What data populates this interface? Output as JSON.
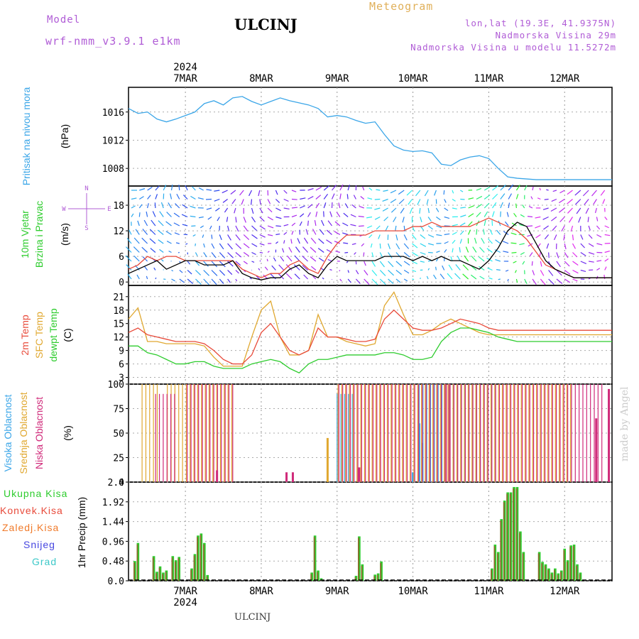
{
  "header": {
    "model_label": "Model",
    "model_name": "wrf-nmm_v3.9.1 e1km",
    "station": "ULCINJ",
    "meteogram": "Meteogram",
    "lonlat": "lon,lat (19.3E, 41.9375N)",
    "elevation": "Nadmorska Visina 29m",
    "model_elevation": "Nadmorska Visina u modelu 11.5272m"
  },
  "footer": {
    "station": "ULCINJ",
    "credit": "made by Angel"
  },
  "colors": {
    "pressure": "#3ba6e8",
    "temp2m": "#e84a3a",
    "sfc": "#e0a830",
    "dewpt": "#2ecc2e",
    "high_cloud": "#3ba6e8",
    "mid_cloud": "#e0a830",
    "low_cloud": "#d02a7a",
    "total_rain": "#2ecc2e",
    "conv_rain": "#e84a3a",
    "freezing": "#f07a2a",
    "snow": "#4646e0",
    "hail": "#3cc8c8",
    "wind_speed": "#000000",
    "gust": "#e84a3a"
  },
  "chart_data": [
    {
      "type": "line",
      "panel": "pressure",
      "label_left": "Pritisak na nivou mora",
      "unit": "(hPa)",
      "ylim": [
        1005.5,
        1019.5
      ],
      "yticks": [
        1008,
        1012,
        1016
      ],
      "x": [
        0,
        3,
        6,
        9,
        12,
        15,
        18,
        21,
        24,
        27,
        30,
        33,
        36,
        39,
        42,
        45,
        48,
        51,
        54,
        57,
        60,
        63,
        66,
        69,
        72,
        75,
        78,
        81,
        84,
        87,
        90,
        93,
        96,
        99,
        102,
        105,
        108,
        111,
        114,
        117,
        120,
        123,
        126,
        129,
        132,
        135,
        138,
        141,
        144,
        147,
        150,
        153
      ],
      "values": [
        1016.5,
        1015.8,
        1016.0,
        1015.0,
        1014.6,
        1015.0,
        1015.5,
        1016.0,
        1017.2,
        1017.6,
        1017.0,
        1018.0,
        1018.2,
        1017.5,
        1017.0,
        1017.5,
        1018.0,
        1017.6,
        1017.3,
        1017.0,
        1016.5,
        1015.3,
        1015.5,
        1015.3,
        1014.8,
        1014.4,
        1014.6,
        1012.8,
        1011.2,
        1010.6,
        1010.4,
        1010.5,
        1010.2,
        1008.6,
        1008.4,
        1009.2,
        1009.6,
        1009.8,
        1009.4,
        1008.0,
        1006.8,
        1006.6,
        1006.5,
        1006.4,
        1006.4,
        1006.4,
        1006.4,
        1006.4,
        1006.4,
        1006.4,
        1006.4,
        1006.4
      ]
    },
    {
      "type": "line",
      "panel": "wind",
      "label_left": [
        "10m Vjetar",
        "Brzina i Pravac"
      ],
      "unit": "(m/s)",
      "compass": [
        "N",
        "W",
        "E",
        "S"
      ],
      "ylim": [
        -0.8,
        22.5
      ],
      "yticks": [
        0,
        6,
        12,
        18
      ],
      "series": [
        {
          "name": "speed",
          "values": [
            2,
            3,
            4,
            5,
            3,
            4,
            5,
            5,
            4,
            4,
            4,
            5,
            2,
            1,
            0.5,
            1,
            1,
            3,
            4,
            2,
            1,
            4,
            6,
            5,
            5,
            5,
            5,
            6,
            6,
            6,
            5,
            6,
            5,
            6,
            5,
            5,
            4,
            3,
            5,
            8,
            12,
            14,
            13,
            9,
            5,
            3,
            2,
            1,
            1,
            1,
            1,
            1
          ]
        },
        {
          "name": "gust",
          "values": [
            3,
            4,
            6,
            5,
            6,
            6,
            5,
            5,
            5,
            5,
            5,
            5,
            3,
            2,
            1,
            2,
            2,
            4,
            5,
            3,
            2,
            6,
            9,
            11,
            11,
            11,
            12,
            12,
            12,
            12,
            13,
            13,
            14,
            13,
            13,
            13,
            13,
            14,
            15,
            14,
            13,
            12,
            10,
            7,
            4,
            3,
            2,
            1,
            1,
            1,
            1,
            1
          ]
        }
      ]
    },
    {
      "type": "line",
      "panel": "temperature",
      "label_left": [
        "2m Temp",
        "SFC Temp",
        "dewpt Temp"
      ],
      "unit": "(C)",
      "ylim": [
        1.5,
        23.5
      ],
      "yticks": [
        3,
        6,
        9,
        12,
        15,
        18,
        21
      ],
      "series": [
        {
          "name": "2m Temp",
          "values": [
            13,
            14,
            12.5,
            12,
            11.5,
            11,
            11,
            11,
            10.5,
            9,
            7,
            6,
            6,
            8,
            13,
            15,
            12,
            9,
            8,
            9,
            14,
            12,
            12,
            11.5,
            11,
            11,
            11.5,
            16,
            18,
            16,
            14,
            13.5,
            13.5,
            14,
            15,
            16,
            15.5,
            15,
            14,
            13.5,
            13.5,
            13.5,
            13.5,
            13.5,
            13.5,
            13.5,
            13.5,
            13.5,
            13.5,
            13.5,
            13.5,
            13.5
          ]
        },
        {
          "name": "SFC Temp",
          "values": [
            16,
            18.5,
            11,
            11,
            10.5,
            10.5,
            10.5,
            10.5,
            10,
            7.5,
            5.5,
            5.5,
            5.5,
            12,
            18,
            20,
            12,
            8,
            8,
            9,
            17,
            12,
            12,
            11,
            10.5,
            10,
            10.5,
            19,
            22,
            17,
            12.5,
            12.5,
            13.5,
            15,
            16,
            15,
            14,
            13,
            12.5,
            12.5,
            12.5,
            12.5,
            12.5,
            12.5,
            12.5,
            12.5,
            12.5,
            12.5,
            12.5,
            12.5,
            12.5,
            12.5
          ]
        },
        {
          "name": "dewpt Temp",
          "values": [
            10,
            10,
            8.5,
            8,
            7,
            6,
            6,
            6.5,
            6.5,
            5.5,
            5,
            5,
            5,
            6,
            6.5,
            7,
            6.5,
            5,
            4,
            6,
            7,
            7,
            7.5,
            8,
            8,
            8,
            8,
            8.5,
            8.5,
            8,
            7,
            7,
            7.5,
            11,
            13,
            14,
            14,
            13.5,
            13,
            12,
            11.5,
            11,
            11,
            11,
            11,
            11,
            11,
            11,
            11,
            11,
            11,
            11
          ]
        }
      ]
    },
    {
      "type": "bar",
      "panel": "cloud",
      "label_left": [
        "Visoka Oblacnost",
        "Srednja Oblacnost",
        "Niska Oblacnost"
      ],
      "unit": "(%)",
      "ylim": [
        0,
        100
      ],
      "yticks": [
        0,
        25,
        50,
        75,
        100
      ],
      "series": [
        {
          "name": "Visoka Oblacnost",
          "ranges": [
            [
              66,
              72,
              0.9
            ],
            [
              92,
              117,
              1.0
            ]
          ],
          "extra": [
            [
              90,
              10
            ],
            [
              92,
              60
            ],
            [
              93,
              40
            ]
          ]
        },
        {
          "name": "Srednja Oblacnost",
          "ranges": [
            [
              4,
              9,
              1.0
            ],
            [
              12,
              33,
              1.0
            ],
            [
              66,
              101,
              1.0
            ],
            [
              100,
              140,
              1.0
            ]
          ],
          "extra": [
            [
              63,
              45
            ]
          ]
        },
        {
          "name": "Niska Oblacnost",
          "ranges": [
            [
              8,
              15,
              0.9
            ],
            [
              18,
              33,
              1.0
            ],
            [
              66,
              101,
              1.0
            ],
            [
              100,
              150,
              1.0
            ]
          ],
          "extra": [
            [
              28,
              12
            ],
            [
              50,
              10
            ],
            [
              52,
              10
            ],
            [
              73,
              15
            ],
            [
              148,
              65
            ],
            [
              152,
              95
            ]
          ]
        }
      ]
    },
    {
      "type": "bar",
      "panel": "precipitation",
      "label_left": [
        "Ukupna Kisa",
        "Konvek.Kisa",
        "Zaledj.Kisa",
        "Snijeg",
        "Grad"
      ],
      "unit": "1hr Precip (mm)",
      "ylim": [
        0,
        2.4
      ],
      "yticks": [
        0,
        0.48,
        0.96,
        1.44,
        1.92,
        2.4
      ],
      "values": [
        [
          2,
          0.48
        ],
        [
          3,
          0.92
        ],
        [
          8,
          0.6
        ],
        [
          9,
          0.22
        ],
        [
          10,
          0.35
        ],
        [
          11,
          0.2
        ],
        [
          12,
          0.25
        ],
        [
          14,
          0.6
        ],
        [
          15,
          0.5
        ],
        [
          16,
          0.58
        ],
        [
          20,
          0.3
        ],
        [
          21,
          0.65
        ],
        [
          22,
          1.1
        ],
        [
          23,
          1.15
        ],
        [
          24,
          0.92
        ],
        [
          25,
          0.14
        ],
        [
          58,
          0.2
        ],
        [
          59,
          1.1
        ],
        [
          60,
          0.25
        ],
        [
          61,
          0.06
        ],
        [
          72,
          0.12
        ],
        [
          73,
          1.08
        ],
        [
          74,
          0.4
        ],
        [
          78,
          0.15
        ],
        [
          79,
          0.18
        ],
        [
          80,
          0.47
        ],
        [
          115,
          0.3
        ],
        [
          116,
          0.88
        ],
        [
          117,
          0.7
        ],
        [
          118,
          1.5
        ],
        [
          119,
          1.95
        ],
        [
          120,
          2.15
        ],
        [
          121,
          2.15
        ],
        [
          122,
          2.28
        ],
        [
          123,
          2.28
        ],
        [
          124,
          1.2
        ],
        [
          125,
          0.7
        ],
        [
          130,
          0.7
        ],
        [
          131,
          0.46
        ],
        [
          132,
          0.4
        ],
        [
          133,
          0.3
        ],
        [
          134,
          0.2
        ],
        [
          135,
          0.3
        ],
        [
          136,
          0.18
        ],
        [
          137,
          0.25
        ],
        [
          138,
          0.78
        ],
        [
          139,
          0.5
        ],
        [
          140,
          0.86
        ],
        [
          141,
          0.88
        ],
        [
          142,
          0.4
        ],
        [
          143,
          0.2
        ]
      ]
    }
  ],
  "time_axis": {
    "year": "2024",
    "day_labels": [
      "7MAR",
      "8MAR",
      "9MAR",
      "10MAR",
      "11MAR",
      "12MAR"
    ]
  }
}
